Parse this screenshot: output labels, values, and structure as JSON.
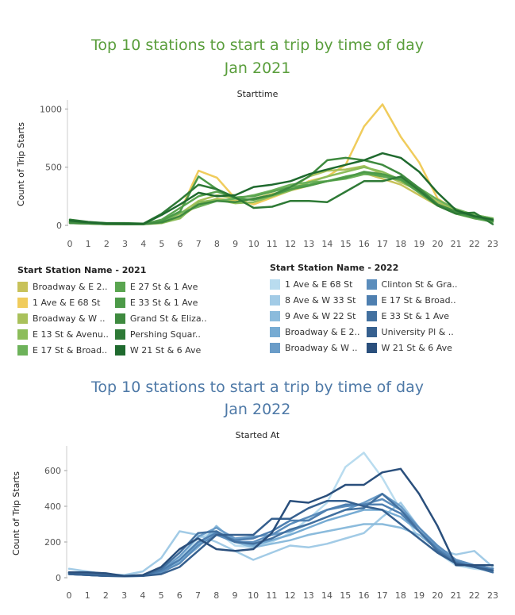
{
  "chart_data": [
    {
      "type": "line",
      "title": "Top 10 stations to start a trip by time of day",
      "subtitle": "Jan 2021",
      "header": "Starttime",
      "ylabel": "Count of Trip Starts",
      "xlabel": "",
      "x": [
        0,
        1,
        2,
        3,
        4,
        5,
        6,
        7,
        8,
        9,
        10,
        11,
        12,
        13,
        14,
        15,
        16,
        17,
        18,
        19,
        20,
        21,
        22,
        23
      ],
      "ylim": [
        0,
        1050
      ],
      "yticks": [
        0,
        500,
        1000
      ],
      "legend_title": "Start Station Name - 2021",
      "series": [
        {
          "name": "Broadway & E 2..",
          "color": "#c8c25a",
          "values": [
            20,
            15,
            10,
            10,
            10,
            20,
            70,
            180,
            230,
            210,
            230,
            270,
            300,
            340,
            380,
            410,
            450,
            400,
            350,
            260,
            170,
            100,
            60,
            40
          ]
        },
        {
          "name": "1 Ave & E 68 St",
          "color": "#f0cc5c",
          "values": [
            25,
            15,
            10,
            10,
            12,
            30,
            120,
            470,
            410,
            230,
            180,
            240,
            300,
            380,
            420,
            520,
            850,
            1040,
            760,
            540,
            230,
            130,
            80,
            50
          ]
        },
        {
          "name": "Broadway & W ..",
          "color": "#a9c15b",
          "values": [
            30,
            20,
            15,
            12,
            12,
            40,
            100,
            210,
            260,
            230,
            220,
            260,
            320,
            420,
            470,
            480,
            510,
            440,
            370,
            300,
            200,
            130,
            90,
            60
          ]
        },
        {
          "name": "E 13 St & Avenu..",
          "color": "#8cbd5a",
          "values": [
            20,
            15,
            10,
            10,
            10,
            20,
            60,
            200,
            220,
            190,
            200,
            250,
            300,
            370,
            420,
            460,
            500,
            460,
            390,
            300,
            180,
            110,
            60,
            40
          ]
        },
        {
          "name": "E 17 St & Broad..",
          "color": "#6db25a",
          "values": [
            25,
            20,
            15,
            12,
            12,
            35,
            110,
            160,
            210,
            230,
            260,
            300,
            350,
            370,
            380,
            400,
            440,
            430,
            400,
            320,
            220,
            140,
            90,
            60
          ]
        },
        {
          "name": "E 27 St & 1 Ave",
          "color": "#5aa550",
          "values": [
            30,
            20,
            15,
            10,
            10,
            50,
            150,
            250,
            290,
            240,
            250,
            290,
            330,
            350,
            380,
            420,
            450,
            420,
            390,
            280,
            170,
            100,
            60,
            30
          ]
        },
        {
          "name": "E 33 St & 1 Ave",
          "color": "#4c9a48",
          "values": [
            35,
            25,
            15,
            12,
            12,
            40,
            120,
            420,
            310,
            230,
            220,
            260,
            310,
            340,
            380,
            410,
            460,
            440,
            400,
            290,
            180,
            100,
            70,
            40
          ]
        },
        {
          "name": "Grand St & Eliza..",
          "color": "#3e8a3f",
          "values": [
            20,
            15,
            10,
            10,
            10,
            25,
            80,
            180,
            210,
            200,
            230,
            260,
            330,
            420,
            560,
            580,
            560,
            520,
            440,
            320,
            180,
            120,
            70,
            40
          ]
        },
        {
          "name": "Pershing Squar..",
          "color": "#2e7a36",
          "values": [
            50,
            30,
            20,
            20,
            15,
            100,
            220,
            350,
            310,
            240,
            150,
            160,
            210,
            210,
            200,
            290,
            380,
            380,
            420,
            300,
            170,
            100,
            110,
            10
          ]
        },
        {
          "name": "W 21 St & 6 Ave",
          "color": "#1f6a2e",
          "values": [
            40,
            25,
            15,
            12,
            12,
            90,
            180,
            280,
            250,
            260,
            330,
            350,
            380,
            440,
            480,
            520,
            560,
            620,
            580,
            460,
            280,
            130,
            80,
            50
          ]
        }
      ]
    },
    {
      "type": "line",
      "title": "Top 10 stations to start a trip by time of day",
      "subtitle": "Jan 2022",
      "header": "Started At",
      "ylabel": "Count of Trip Starts",
      "xlabel": "",
      "x": [
        0,
        1,
        2,
        3,
        4,
        5,
        6,
        7,
        8,
        9,
        10,
        11,
        12,
        13,
        14,
        15,
        16,
        17,
        18,
        19,
        20,
        21,
        22,
        23
      ],
      "ylim": [
        0,
        720
      ],
      "yticks": [
        0,
        200,
        400,
        600
      ],
      "legend_title": "Start Station Name - 2022",
      "series": [
        {
          "name": "1 Ave & E 68 St",
          "color": "#b9dcef",
          "values": [
            30,
            20,
            15,
            12,
            15,
            40,
            110,
            220,
            260,
            180,
            170,
            200,
            250,
            330,
            420,
            620,
            700,
            560,
            380,
            220,
            140,
            70,
            50,
            40
          ]
        },
        {
          "name": "8 Ave & W 33 St",
          "color": "#a2cbe6",
          "values": [
            50,
            35,
            20,
            15,
            35,
            110,
            260,
            240,
            200,
            150,
            100,
            140,
            180,
            170,
            190,
            220,
            250,
            340,
            420,
            280,
            160,
            130,
            150,
            60
          ]
        },
        {
          "name": "9 Ave & W 22 St",
          "color": "#8bbbdc",
          "values": [
            20,
            15,
            10,
            8,
            10,
            30,
            90,
            170,
            290,
            200,
            170,
            190,
            210,
            240,
            260,
            280,
            300,
            300,
            280,
            240,
            160,
            90,
            60,
            40
          ]
        },
        {
          "name": "Broadway & E 2..",
          "color": "#76abd3",
          "values": [
            25,
            20,
            12,
            10,
            12,
            35,
            100,
            190,
            260,
            210,
            180,
            210,
            240,
            280,
            320,
            350,
            380,
            380,
            340,
            260,
            160,
            90,
            60,
            40
          ]
        },
        {
          "name": "Broadway & W ..",
          "color": "#6a9cc8",
          "values": [
            20,
            15,
            10,
            10,
            10,
            40,
            120,
            230,
            280,
            220,
            230,
            240,
            260,
            300,
            340,
            380,
            420,
            470,
            400,
            280,
            170,
            100,
            70,
            50
          ]
        },
        {
          "name": "Clinton St & Gra..",
          "color": "#5b8dbc",
          "values": [
            20,
            15,
            10,
            10,
            10,
            30,
            80,
            180,
            240,
            200,
            200,
            240,
            300,
            340,
            380,
            400,
            410,
            440,
            380,
            280,
            180,
            100,
            70,
            50
          ]
        },
        {
          "name": "E 17 St & Broad..",
          "color": "#4e7fb0",
          "values": [
            25,
            15,
            10,
            10,
            10,
            40,
            100,
            200,
            250,
            210,
            220,
            260,
            320,
            320,
            380,
            410,
            410,
            410,
            360,
            260,
            160,
            90,
            60,
            50
          ]
        },
        {
          "name": "E 33 St & 1 Ave",
          "color": "#42709f",
          "values": [
            30,
            20,
            15,
            10,
            10,
            50,
            140,
            250,
            260,
            200,
            190,
            220,
            270,
            300,
            340,
            380,
            390,
            470,
            380,
            260,
            150,
            80,
            60,
            30
          ]
        },
        {
          "name": "University Pl & ..",
          "color": "#36608f",
          "values": [
            20,
            15,
            10,
            8,
            10,
            20,
            60,
            150,
            240,
            240,
            240,
            330,
            330,
            390,
            430,
            430,
            400,
            380,
            300,
            220,
            140,
            80,
            60,
            40
          ]
        },
        {
          "name": "W 21 St & 6 Ave",
          "color": "#2a4f7c",
          "values": [
            30,
            30,
            25,
            10,
            15,
            60,
            160,
            220,
            160,
            150,
            160,
            250,
            430,
            420,
            460,
            520,
            520,
            590,
            610,
            470,
            290,
            70,
            70,
            70
          ]
        }
      ]
    }
  ]
}
